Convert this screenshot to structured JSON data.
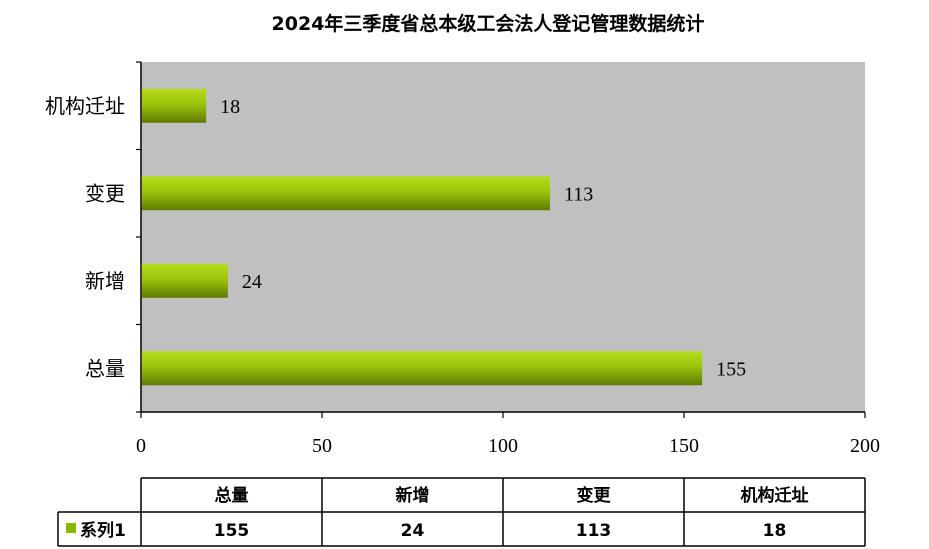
{
  "colors": {
    "plot_bg": "#c0c0c0",
    "bar_top": "#b5dc1c",
    "bar_bottom": "#5f7a00",
    "legend_key": "#8cb800"
  },
  "chart_data": {
    "type": "bar",
    "orientation": "horizontal",
    "title": "2024年三季度省总本级工会法人登记管理数据统计",
    "categories": [
      "总量",
      "新增",
      "变更",
      "机构迁址"
    ],
    "series": [
      {
        "name": "系列1",
        "values": [
          155,
          24,
          113,
          18
        ]
      }
    ],
    "xlim": [
      0,
      200
    ],
    "x_ticks": [
      0,
      50,
      100,
      150,
      200
    ],
    "grid": false,
    "data_labels": true,
    "data_table": true,
    "legend": "in-data-table"
  }
}
